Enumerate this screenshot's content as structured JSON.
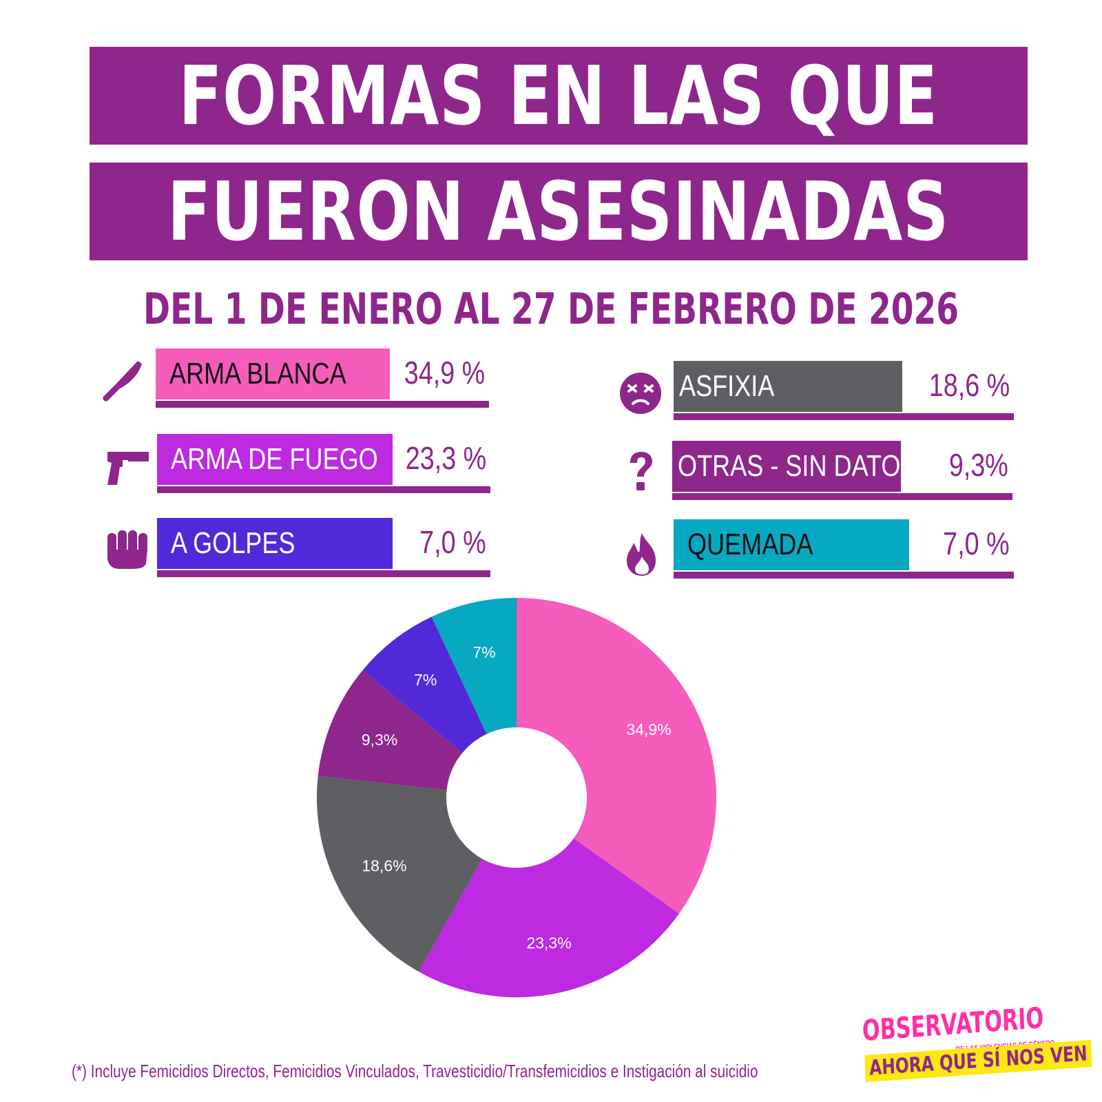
{
  "title": {
    "line1": "FORMAS EN LAS QUE",
    "line2": "FUERON ASESINADAS"
  },
  "subtitle": "DEL 1 DE ENERO AL 27 DE FEBRERO DE 2026",
  "categories": [
    {
      "label": "ARMA BLANCA",
      "percent_text": "34,9 %",
      "color": "#f65cbc",
      "text_color": "#111111",
      "icon": "knife-icon",
      "value": 34.9
    },
    {
      "label": "ARMA DE FUEGO",
      "percent_text": "23,3 %",
      "color": "#bd2ae0",
      "text_color": "#ffffff",
      "icon": "gun-icon",
      "value": 23.3
    },
    {
      "label": "A GOLPES",
      "percent_text": "7,0 %",
      "color": "#5229d9",
      "text_color": "#ffffff",
      "icon": "fist-icon",
      "value": 7.0
    },
    {
      "label": "ASFIXIA",
      "percent_text": "18,6 %",
      "color": "#5e5f63",
      "text_color": "#ffffff",
      "icon": "dizzy-face-icon",
      "value": 18.6
    },
    {
      "label": "OTRAS - SIN DATOS",
      "percent_text": "9,3%",
      "color": "#8e268c",
      "text_color": "#ffffff",
      "icon": "question-icon",
      "value": 9.3
    },
    {
      "label": "QUEMADA",
      "percent_text": "7,0 %",
      "color": "#07a8c2",
      "text_color": "#111111",
      "icon": "fire-icon",
      "value": 7.0
    }
  ],
  "chart_data": {
    "type": "pie",
    "donut": true,
    "slices": [
      {
        "value": 34.9,
        "label": "34,9%",
        "color": "#f65cbc"
      },
      {
        "value": 23.3,
        "label": "23,3%",
        "color": "#bd2ae0"
      },
      {
        "value": 18.6,
        "label": "18,6%",
        "color": "#5e5f63"
      },
      {
        "value": 9.3,
        "label": "9,3%",
        "color": "#8e268c"
      },
      {
        "value": 7,
        "label": "7%",
        "color": "#5229d9"
      },
      {
        "value": 7,
        "label": "7%",
        "color": "#07a8c2"
      }
    ]
  },
  "footnote": "(*) Incluye Femicidios Directos, Femicidios Vinculados,  Travesticidio/Transfemicidios e Instigación al suicidio",
  "logo": {
    "line1": "OBSERVATORIO",
    "line2": "DE LAS VIOLENCIAS DE GÉNERO",
    "line3": "AHORA QUE SÍ NOS VEN"
  },
  "colors": {
    "brand_purple": "#8e268c",
    "logo_pink": "#ff2fa6",
    "logo_yellow": "#ffe712"
  }
}
